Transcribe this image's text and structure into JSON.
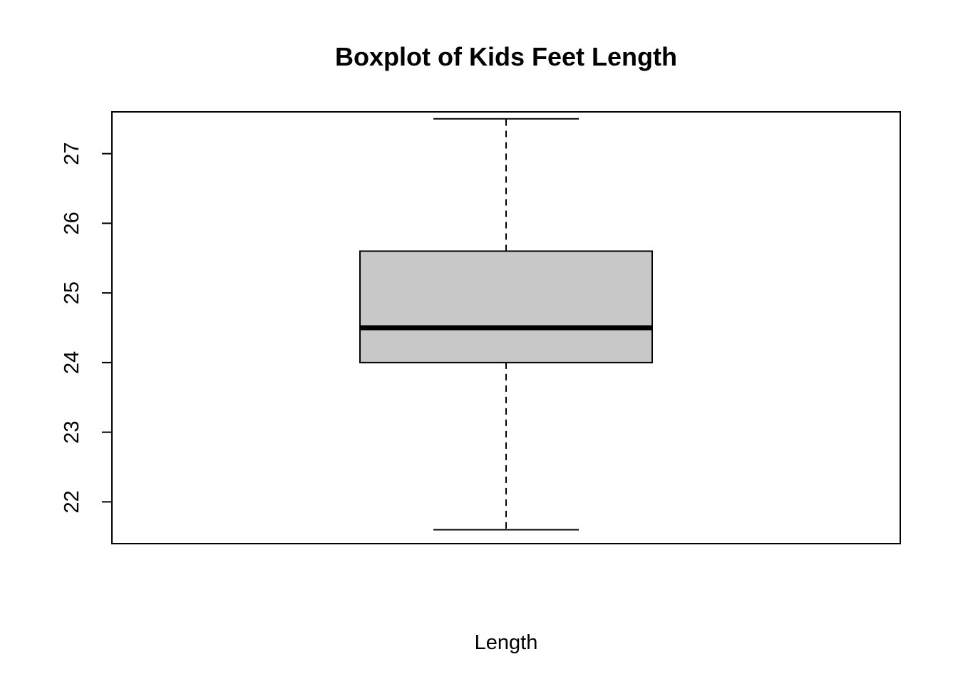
{
  "chart_data": {
    "type": "boxplot",
    "title": "Boxplot of Kids Feet Length",
    "xlabel": "Length",
    "ylabel": "",
    "ylim": [
      21.4,
      27.6
    ],
    "yticks": [
      22,
      23,
      24,
      25,
      26,
      27
    ],
    "grid": false,
    "legend": "none",
    "box": {
      "whisker_low": 21.6,
      "q1": 24.0,
      "median": 24.5,
      "q3": 25.6,
      "whisker_high": 27.5
    },
    "colors": {
      "box_fill": "#c8c8c8",
      "stroke": "#000000",
      "background": "#ffffff"
    }
  }
}
